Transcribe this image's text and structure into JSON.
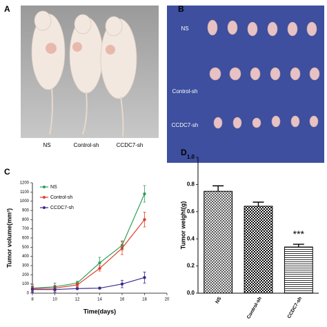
{
  "panel_a": {
    "letter": "A",
    "labels": [
      "NS",
      "Control-sh",
      "CCDC7-sh"
    ]
  },
  "panel_b": {
    "letter": "B",
    "labels": [
      "NS",
      "Control-sh",
      "CCDC7-sh"
    ]
  },
  "chart_data": [
    {
      "type": "line",
      "panel": "C",
      "x_label": "Time(days)",
      "y_label": "Tumor volume(mm³)",
      "x": [
        8,
        10,
        12,
        14,
        16,
        18
      ],
      "series": [
        {
          "name": "NS",
          "color": "#2e9e5b",
          "values": [
            55,
            70,
            110,
            330,
            520,
            1080
          ],
          "errors": [
            40,
            40,
            20,
            60,
            50,
            90
          ]
        },
        {
          "name": "Control-sh",
          "color": "#e0402a",
          "values": [
            50,
            55,
            90,
            270,
            490,
            800
          ],
          "errors": [
            30,
            30,
            20,
            30,
            70,
            80
          ]
        },
        {
          "name": "CCDC7-sh",
          "color": "#3b2a8c",
          "values": [
            40,
            40,
            50,
            55,
            100,
            170
          ],
          "errors": [
            30,
            30,
            10,
            10,
            40,
            60
          ]
        }
      ],
      "xlim": [
        8,
        20
      ],
      "xticks": [
        8,
        10,
        12,
        14,
        16,
        18,
        20
      ],
      "ylim": [
        0,
        1200
      ],
      "yticks": [
        0,
        100,
        200,
        300,
        400,
        500,
        600,
        700,
        800,
        900,
        1000,
        1100,
        1200
      ],
      "legend": "upper left"
    },
    {
      "type": "bar",
      "panel": "D",
      "y_label": "Tumor weight(g)",
      "categories": [
        "NS",
        "Control-sh",
        "CCDC7-sh"
      ],
      "values": [
        0.75,
        0.64,
        0.34
      ],
      "errors": [
        0.04,
        0.03,
        0.02
      ],
      "color": "#000000",
      "annotation": "***",
      "ylim": [
        0,
        1
      ],
      "yticks": [
        {
          "value": 0,
          "label": "0.0"
        },
        0.2,
        0.4,
        0.6,
        0.8,
        {
          "value": 1,
          "label": "1.0"
        }
      ]
    }
  ]
}
